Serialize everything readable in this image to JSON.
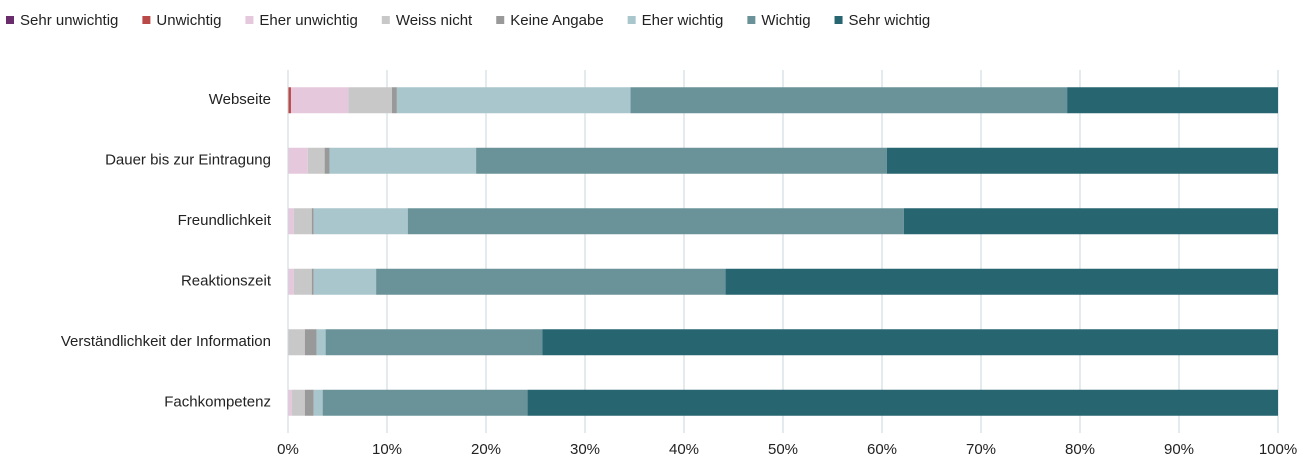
{
  "chart_data": {
    "type": "stacked-bar-horizontal",
    "categories": [
      "Webseite",
      "Dauer bis zur Eintragung",
      "Freundlichkeit",
      "Reaktionszeit",
      "Verständlichkeit der Information",
      "Fachkompetenz"
    ],
    "series": [
      {
        "name": "Sehr unwichtig",
        "color": "#6b2c6e",
        "values": [
          0,
          0,
          0,
          0,
          0,
          0
        ]
      },
      {
        "name": "Unwichtig",
        "color": "#b94a48",
        "values": [
          0.3,
          0,
          0,
          0,
          0,
          0
        ]
      },
      {
        "name": "Eher unwichtig",
        "color": "#e6c8dd",
        "values": [
          5.8,
          2.0,
          0.6,
          0.6,
          0,
          0.4
        ]
      },
      {
        "name": "Weiss nicht",
        "color": "#c8c8c8",
        "values": [
          4.4,
          1.7,
          1.8,
          1.8,
          1.7,
          1.3
        ]
      },
      {
        "name": "Keine Angabe",
        "color": "#999999",
        "values": [
          0.5,
          0.5,
          0.2,
          0.2,
          1.2,
          0.9
        ]
      },
      {
        "name": "Eher wichtig",
        "color": "#a9c6cc",
        "values": [
          23.6,
          14.8,
          9.5,
          6.3,
          0.9,
          0.9
        ]
      },
      {
        "name": "Wichtig",
        "color": "#6a9399",
        "values": [
          44.1,
          41.5,
          50.1,
          35.3,
          21.9,
          20.7
        ]
      },
      {
        "name": "Sehr wichtig",
        "color": "#276570",
        "values": [
          21.3,
          39.5,
          37.8,
          55.8,
          74.3,
          75.8
        ]
      }
    ],
    "xlim": [
      0,
      100
    ],
    "xticks": [
      {
        "value": 0,
        "label": "0%"
      },
      {
        "value": 10,
        "label": "10%"
      },
      {
        "value": 20,
        "label": "20%"
      },
      {
        "value": 30,
        "label": "30%"
      },
      {
        "value": 40,
        "label": "40%"
      },
      {
        "value": 50,
        "label": "50%"
      },
      {
        "value": 60,
        "label": "60%"
      },
      {
        "value": 70,
        "label": "70%"
      },
      {
        "value": 80,
        "label": "80%"
      },
      {
        "value": 90,
        "label": "90%"
      },
      {
        "value": 100,
        "label": "100%"
      }
    ],
    "grid": true,
    "legend": "top"
  }
}
